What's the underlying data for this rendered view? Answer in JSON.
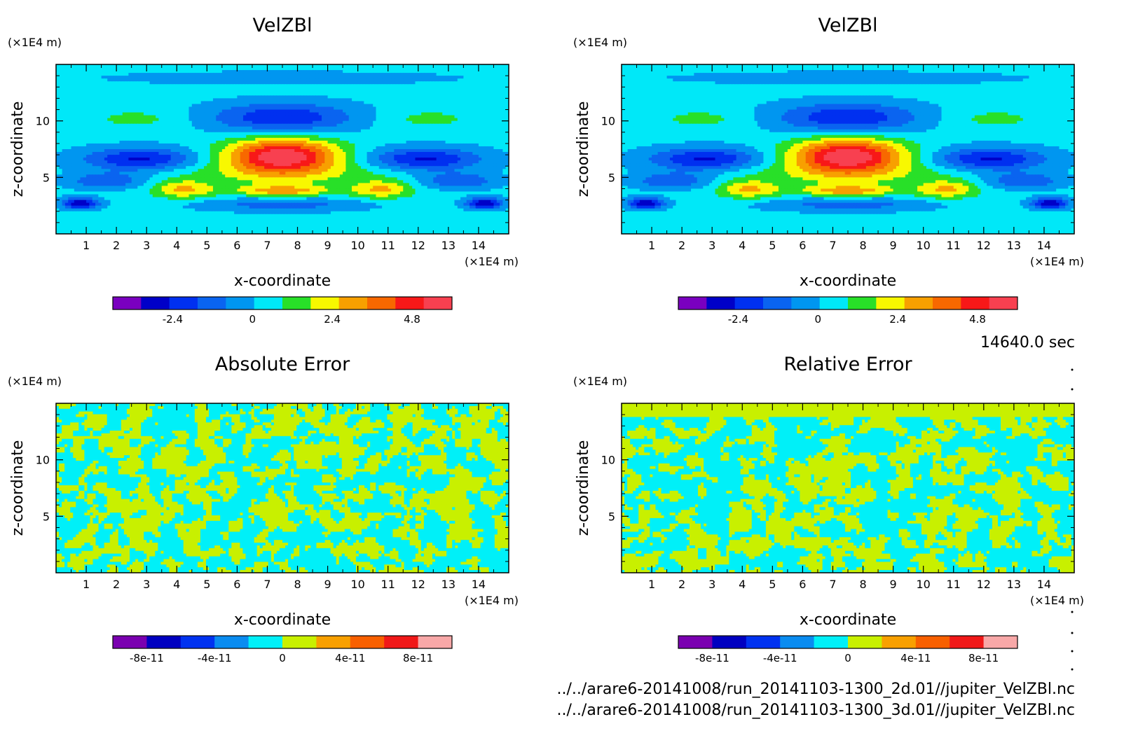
{
  "chart_data": [
    {
      "type": "heatmap",
      "title": "VelZBl",
      "xlabel": "x-coordinate",
      "ylabel": "z-coordinate",
      "x_unit": "(×1E4 m)",
      "y_unit": "(×1E4 m)",
      "xlim": [
        0,
        15
      ],
      "ylim": [
        0,
        15
      ],
      "x_ticks": [
        "1",
        "2",
        "3",
        "4",
        "5",
        "6",
        "7",
        "8",
        "9",
        "10",
        "11",
        "12",
        "13",
        "14"
      ],
      "y_ticks": [
        "5",
        "10"
      ],
      "field": "velocity",
      "colorbar": {
        "range": [
          -4.2,
          6.0
        ],
        "colors": [
          "#7a00c0",
          "#0000c8",
          "#0030f0",
          "#0a64f0",
          "#0096f0",
          "#00e8f8",
          "#28e028",
          "#f8f800",
          "#f8a000",
          "#f86800",
          "#f81818",
          "#f84050"
        ],
        "ticks": [
          "-2.4",
          "0",
          "2.4",
          "4.8"
        ],
        "tick_values": [
          -2.4,
          0,
          2.4,
          4.8
        ]
      }
    },
    {
      "type": "heatmap",
      "title": "VelZBl",
      "xlabel": "x-coordinate",
      "ylabel": "z-coordinate",
      "x_unit": "(×1E4 m)",
      "y_unit": "(×1E4 m)",
      "xlim": [
        0,
        15
      ],
      "ylim": [
        0,
        15
      ],
      "x_ticks": [
        "1",
        "2",
        "3",
        "4",
        "5",
        "6",
        "7",
        "8",
        "9",
        "10",
        "11",
        "12",
        "13",
        "14"
      ],
      "y_ticks": [
        "5",
        "10"
      ],
      "field": "velocity",
      "colorbar": {
        "range": [
          -4.2,
          6.0
        ],
        "colors": [
          "#7a00c0",
          "#0000c8",
          "#0030f0",
          "#0a64f0",
          "#0096f0",
          "#00e8f8",
          "#28e028",
          "#f8f800",
          "#f8a000",
          "#f86800",
          "#f81818",
          "#f84050"
        ],
        "ticks": [
          "-2.4",
          "0",
          "2.4",
          "4.8"
        ],
        "tick_values": [
          -2.4,
          0,
          2.4,
          4.8
        ]
      }
    },
    {
      "type": "heatmap",
      "title": "Absolute Error",
      "xlabel": "x-coordinate",
      "ylabel": "z-coordinate",
      "x_unit": "(×1E4 m)",
      "y_unit": "(×1E4 m)",
      "xlim": [
        0,
        15
      ],
      "ylim": [
        0,
        15
      ],
      "x_ticks": [
        "1",
        "2",
        "3",
        "4",
        "5",
        "6",
        "7",
        "8",
        "9",
        "10",
        "11",
        "12",
        "13",
        "14"
      ],
      "y_ticks": [
        "5",
        "10"
      ],
      "field": "noise",
      "colorbar": {
        "range": [
          -1e-10,
          1e-10
        ],
        "colors": [
          "#7a00b0",
          "#0000c0",
          "#0032f0",
          "#0a8cf0",
          "#00f0f8",
          "#c8f000",
          "#f8a000",
          "#f86000",
          "#f01818",
          "#f8a8a8"
        ],
        "ticks": [
          "-8e-11",
          "-4e-11",
          "0",
          "4e-11",
          "8e-11"
        ],
        "tick_values": [
          -8e-11,
          -4e-11,
          0,
          4e-11,
          8e-11
        ]
      }
    },
    {
      "type": "heatmap",
      "title": "Relative Error",
      "xlabel": "x-coordinate",
      "ylabel": "z-coordinate",
      "x_unit": "(×1E4 m)",
      "y_unit": "(×1E4 m)",
      "xlim": [
        0,
        15
      ],
      "ylim": [
        0,
        15
      ],
      "x_ticks": [
        "1",
        "2",
        "3",
        "4",
        "5",
        "6",
        "7",
        "8",
        "9",
        "10",
        "11",
        "12",
        "13",
        "14"
      ],
      "y_ticks": [
        "5",
        "10"
      ],
      "field": "noise",
      "colorbar": {
        "range": [
          -1e-10,
          1e-10
        ],
        "colors": [
          "#7a00b0",
          "#0000c0",
          "#0032f0",
          "#0a8cf0",
          "#00f0f8",
          "#c8f000",
          "#f8a000",
          "#f86000",
          "#f01818",
          "#f8a8a8"
        ],
        "ticks": [
          "-8e-11",
          "-4e-11",
          "0",
          "4e-11",
          "8e-11"
        ],
        "tick_values": [
          -8e-11,
          -4e-11,
          0,
          4e-11,
          8e-11
        ]
      }
    }
  ],
  "time_label": "14640.0 sec",
  "files": [
    "../../arare6-20141008/run_20141103-1300_2d.01//jupiter_VelZBl.nc",
    "../../arare6-20141008/run_20141103-1300_3d.01//jupiter_VelZBl.nc"
  ]
}
